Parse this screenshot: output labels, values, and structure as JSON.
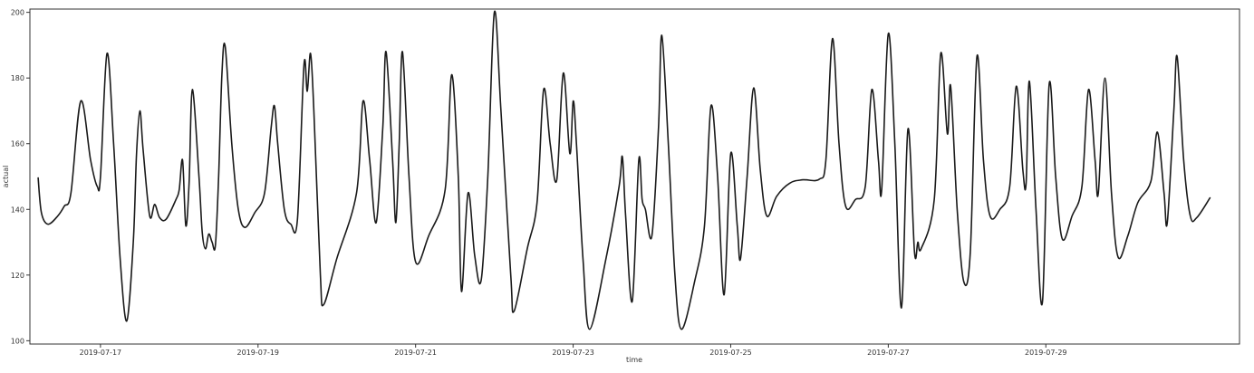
{
  "chart_data": {
    "type": "line",
    "xlabel": "time",
    "ylabel": "actual",
    "x_ticks": [
      "2019-07-17",
      "2019-07-19",
      "2019-07-21",
      "2019-07-23",
      "2019-07-25",
      "2019-07-27",
      "2019-07-29"
    ],
    "y_ticks": [
      100,
      120,
      140,
      160,
      180,
      200
    ],
    "xlim": [
      "2019-07-16 02:30",
      "2019-07-31 11:00"
    ],
    "ylim": [
      99,
      201
    ],
    "grid": false,
    "legend": "none",
    "line_color": "#1a1a1a",
    "series": [
      {
        "points": [
          [
            "2019-07-16 05:00",
            149.6
          ],
          [
            "2019-07-16 06:00",
            139
          ],
          [
            "2019-07-16 08:00",
            135.5
          ],
          [
            "2019-07-16 11:00",
            138
          ],
          [
            "2019-07-16 13:00",
            141
          ],
          [
            "2019-07-16 15:00",
            145
          ],
          [
            "2019-07-16 18:00",
            173
          ],
          [
            "2019-07-16 21:00",
            155
          ],
          [
            "2019-07-16 23:00",
            147
          ],
          [
            "2019-07-17 00:00",
            150
          ],
          [
            "2019-07-17 02:00",
            187.5
          ],
          [
            "2019-07-17 04:00",
            160
          ],
          [
            "2019-07-17 06:00",
            125
          ],
          [
            "2019-07-17 08:00",
            106
          ],
          [
            "2019-07-17 10:00",
            130
          ],
          [
            "2019-07-17 11:00",
            157
          ],
          [
            "2019-07-17 12:00",
            170
          ],
          [
            "2019-07-17 13:00",
            158
          ],
          [
            "2019-07-17 15:00",
            138
          ],
          [
            "2019-07-17 16:30",
            141.5
          ],
          [
            "2019-07-17 18:00",
            137.5
          ],
          [
            "2019-07-17 20:00",
            137
          ],
          [
            "2019-07-17 23:00",
            143
          ],
          [
            "2019-07-18 00:00",
            146
          ],
          [
            "2019-07-18 01:00",
            155
          ],
          [
            "2019-07-18 02:00",
            135
          ],
          [
            "2019-07-18 03:00",
            148
          ],
          [
            "2019-07-18 04:00",
            176.5
          ],
          [
            "2019-07-18 06:00",
            150
          ],
          [
            "2019-07-18 07:00",
            133
          ],
          [
            "2019-07-18 08:00",
            128
          ],
          [
            "2019-07-18 09:00",
            132.5
          ],
          [
            "2019-07-18 10:00",
            130
          ],
          [
            "2019-07-18 11:00",
            129
          ],
          [
            "2019-07-18 12:00",
            150
          ],
          [
            "2019-07-18 13:00",
            181
          ],
          [
            "2019-07-18 14:00",
            189.5
          ],
          [
            "2019-07-18 16:00",
            160
          ],
          [
            "2019-07-18 18:00",
            140
          ],
          [
            "2019-07-18 20:00",
            134.5
          ],
          [
            "2019-07-18 23:00",
            139
          ],
          [
            "2019-07-19 02:00",
            145
          ],
          [
            "2019-07-19 04:00",
            165
          ],
          [
            "2019-07-19 05:00",
            171.5
          ],
          [
            "2019-07-19 06:00",
            160
          ],
          [
            "2019-07-19 08:00",
            140
          ],
          [
            "2019-07-19 10:00",
            135.5
          ],
          [
            "2019-07-19 12:00",
            137
          ],
          [
            "2019-07-19 14:00",
            184
          ],
          [
            "2019-07-19 15:00",
            176
          ],
          [
            "2019-07-19 16:00",
            187.5
          ],
          [
            "2019-07-19 17:00",
            170
          ],
          [
            "2019-07-19 19:00",
            120
          ],
          [
            "2019-07-19 20:00",
            111
          ],
          [
            "2019-07-20 00:00",
            125
          ],
          [
            "2019-07-20 06:00",
            145
          ],
          [
            "2019-07-20 08:00",
            173
          ],
          [
            "2019-07-20 10:00",
            155
          ],
          [
            "2019-07-20 12:00",
            136
          ],
          [
            "2019-07-20 14:00",
            165
          ],
          [
            "2019-07-20 15:00",
            188
          ],
          [
            "2019-07-20 17:00",
            155
          ],
          [
            "2019-07-20 18:00",
            136
          ],
          [
            "2019-07-20 19:00",
            160
          ],
          [
            "2019-07-20 20:00",
            188
          ],
          [
            "2019-07-20 22:00",
            150
          ],
          [
            "2019-07-21 00:00",
            124
          ],
          [
            "2019-07-21 04:00",
            132
          ],
          [
            "2019-07-21 09:00",
            146
          ],
          [
            "2019-07-21 11:00",
            181
          ],
          [
            "2019-07-21 13:00",
            150
          ],
          [
            "2019-07-21 14:00",
            115
          ],
          [
            "2019-07-21 16:00",
            145
          ],
          [
            "2019-07-21 18:00",
            126
          ],
          [
            "2019-07-21 20:00",
            118.5
          ],
          [
            "2019-07-21 22:00",
            150
          ],
          [
            "2019-07-22 00:00",
            200
          ],
          [
            "2019-07-22 02:00",
            170
          ],
          [
            "2019-07-22 05:00",
            120
          ],
          [
            "2019-07-22 06:00",
            109
          ],
          [
            "2019-07-22 10:00",
            128
          ],
          [
            "2019-07-22 13:00",
            142
          ],
          [
            "2019-07-22 15:00",
            176.5
          ],
          [
            "2019-07-22 17:00",
            160
          ],
          [
            "2019-07-22 19:00",
            149
          ],
          [
            "2019-07-22 21:00",
            181.5
          ],
          [
            "2019-07-22 23:00",
            157
          ],
          [
            "2019-07-23 00:00",
            173
          ],
          [
            "2019-07-23 01:00",
            160
          ],
          [
            "2019-07-23 03:00",
            125
          ],
          [
            "2019-07-23 05:00",
            103.5
          ],
          [
            "2019-07-23 10:00",
            125
          ],
          [
            "2019-07-23 14:00",
            147
          ],
          [
            "2019-07-23 15:00",
            156
          ],
          [
            "2019-07-23 16:00",
            138
          ],
          [
            "2019-07-23 18:00",
            112
          ],
          [
            "2019-07-23 20:00",
            155
          ],
          [
            "2019-07-23 21:00",
            143
          ],
          [
            "2019-07-23 22:00",
            140
          ],
          [
            "2019-07-24 00:00",
            132
          ],
          [
            "2019-07-24 02:00",
            165
          ],
          [
            "2019-07-24 03:00",
            193
          ],
          [
            "2019-07-24 05:00",
            160
          ],
          [
            "2019-07-24 07:00",
            120
          ],
          [
            "2019-07-24 09:00",
            103.5
          ],
          [
            "2019-07-24 13:00",
            118
          ],
          [
            "2019-07-24 16:00",
            135
          ],
          [
            "2019-07-24 18:00",
            171.5
          ],
          [
            "2019-07-24 20:00",
            150
          ],
          [
            "2019-07-24 22:00",
            114
          ],
          [
            "2019-07-25 00:00",
            157
          ],
          [
            "2019-07-25 02:00",
            135
          ],
          [
            "2019-07-25 03:00",
            125
          ],
          [
            "2019-07-25 05:00",
            150
          ],
          [
            "2019-07-25 07:00",
            177
          ],
          [
            "2019-07-25 09:00",
            152
          ],
          [
            "2019-07-25 11:00",
            138
          ],
          [
            "2019-07-25 14:00",
            144
          ],
          [
            "2019-07-25 18:00",
            148
          ],
          [
            "2019-07-25 22:00",
            149
          ],
          [
            "2019-07-26 03:00",
            149.2
          ],
          [
            "2019-07-26 05:00",
            155
          ],
          [
            "2019-07-26 07:00",
            192
          ],
          [
            "2019-07-26 09:00",
            160
          ],
          [
            "2019-07-26 11:00",
            141
          ],
          [
            "2019-07-26 14:00",
            143
          ],
          [
            "2019-07-26 17:00",
            147
          ],
          [
            "2019-07-26 19:00",
            176.5
          ],
          [
            "2019-07-26 21:00",
            155
          ],
          [
            "2019-07-26 22:00",
            146
          ],
          [
            "2019-07-27 00:00",
            193.5
          ],
          [
            "2019-07-27 02:00",
            160
          ],
          [
            "2019-07-27 04:00",
            110
          ],
          [
            "2019-07-27 06:00",
            164.5
          ],
          [
            "2019-07-27 08:00",
            127
          ],
          [
            "2019-07-27 09:00",
            130
          ],
          [
            "2019-07-27 10:00",
            128
          ],
          [
            "2019-07-27 14:00",
            143
          ],
          [
            "2019-07-27 16:00",
            187.5
          ],
          [
            "2019-07-27 18:00",
            163
          ],
          [
            "2019-07-27 19:00",
            177.5
          ],
          [
            "2019-07-27 21:00",
            140
          ],
          [
            "2019-07-27 23:00",
            118
          ],
          [
            "2019-07-28 01:00",
            127
          ],
          [
            "2019-07-28 03:00",
            186.5
          ],
          [
            "2019-07-28 05:00",
            155
          ],
          [
            "2019-07-28 07:00",
            138
          ],
          [
            "2019-07-28 10:00",
            140
          ],
          [
            "2019-07-28 13:00",
            147
          ],
          [
            "2019-07-28 15:00",
            177.5
          ],
          [
            "2019-07-28 17:00",
            152
          ],
          [
            "2019-07-28 18:00",
            148
          ],
          [
            "2019-07-28 19:00",
            179
          ],
          [
            "2019-07-28 21:00",
            140
          ],
          [
            "2019-07-28 23:00",
            112
          ],
          [
            "2019-07-29 01:00",
            178
          ],
          [
            "2019-07-29 03:00",
            150
          ],
          [
            "2019-07-29 05:00",
            131
          ],
          [
            "2019-07-29 08:00",
            138
          ],
          [
            "2019-07-29 11:00",
            147
          ],
          [
            "2019-07-29 13:00",
            176.5
          ],
          [
            "2019-07-29 15:00",
            155
          ],
          [
            "2019-07-29 16:00",
            145
          ],
          [
            "2019-07-29 18:00",
            180
          ],
          [
            "2019-07-29 20:00",
            145
          ],
          [
            "2019-07-29 22:00",
            125.5
          ],
          [
            "2019-07-30 01:00",
            132
          ],
          [
            "2019-07-30 04:00",
            142
          ],
          [
            "2019-07-30 08:00",
            148.5
          ],
          [
            "2019-07-30 10:00",
            163.5
          ],
          [
            "2019-07-30 12:00",
            145
          ],
          [
            "2019-07-30 13:00",
            136
          ],
          [
            "2019-07-30 15:00",
            170
          ],
          [
            "2019-07-30 16:00",
            186.5
          ],
          [
            "2019-07-30 18:00",
            155
          ],
          [
            "2019-07-30 20:00",
            138
          ],
          [
            "2019-07-30 22:00",
            137.5
          ],
          [
            "2019-07-31 02:00",
            143.5
          ]
        ]
      }
    ]
  }
}
